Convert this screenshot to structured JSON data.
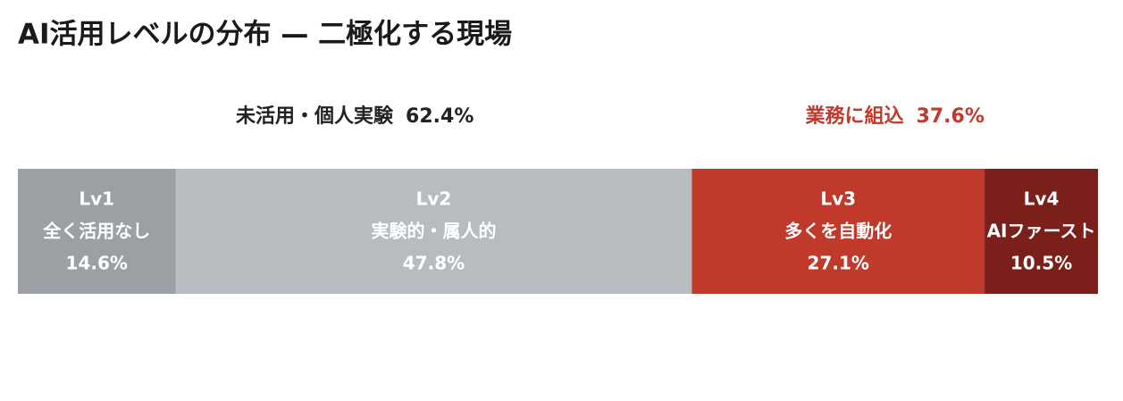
{
  "chart_data": {
    "type": "stacked-bar-100",
    "title": "AI活用レベルの分布 — 二極化する現場",
    "xlim": [
      0,
      100
    ],
    "groups": [
      {
        "name": "未活用・個人実験",
        "value": 62.4,
        "value_label": "62.4%",
        "color": "#222222"
      },
      {
        "name": "業務に組込",
        "value": 37.6,
        "value_label": "37.6%",
        "color": "#c0392b"
      }
    ],
    "series": [
      {
        "name": "Lv1",
        "label": "全く活用なし",
        "color": "#9ca0a5",
        "values": [
          14.6
        ],
        "value_labels": [
          "14.6%"
        ]
      },
      {
        "name": "Lv2",
        "label": "実験的・属人的",
        "color": "#b8bcc0",
        "values": [
          47.8
        ],
        "value_labels": [
          "47.8%"
        ]
      },
      {
        "name": "Lv3",
        "label": "多くを自動化",
        "color": "#c0392b",
        "values": [
          27.1
        ],
        "value_labels": [
          "27.1%"
        ]
      },
      {
        "name": "Lv4",
        "label": "AIファースト",
        "color": "#7b1f1a",
        "values": [
          10.5
        ],
        "value_labels": [
          "10.5%"
        ]
      }
    ]
  }
}
